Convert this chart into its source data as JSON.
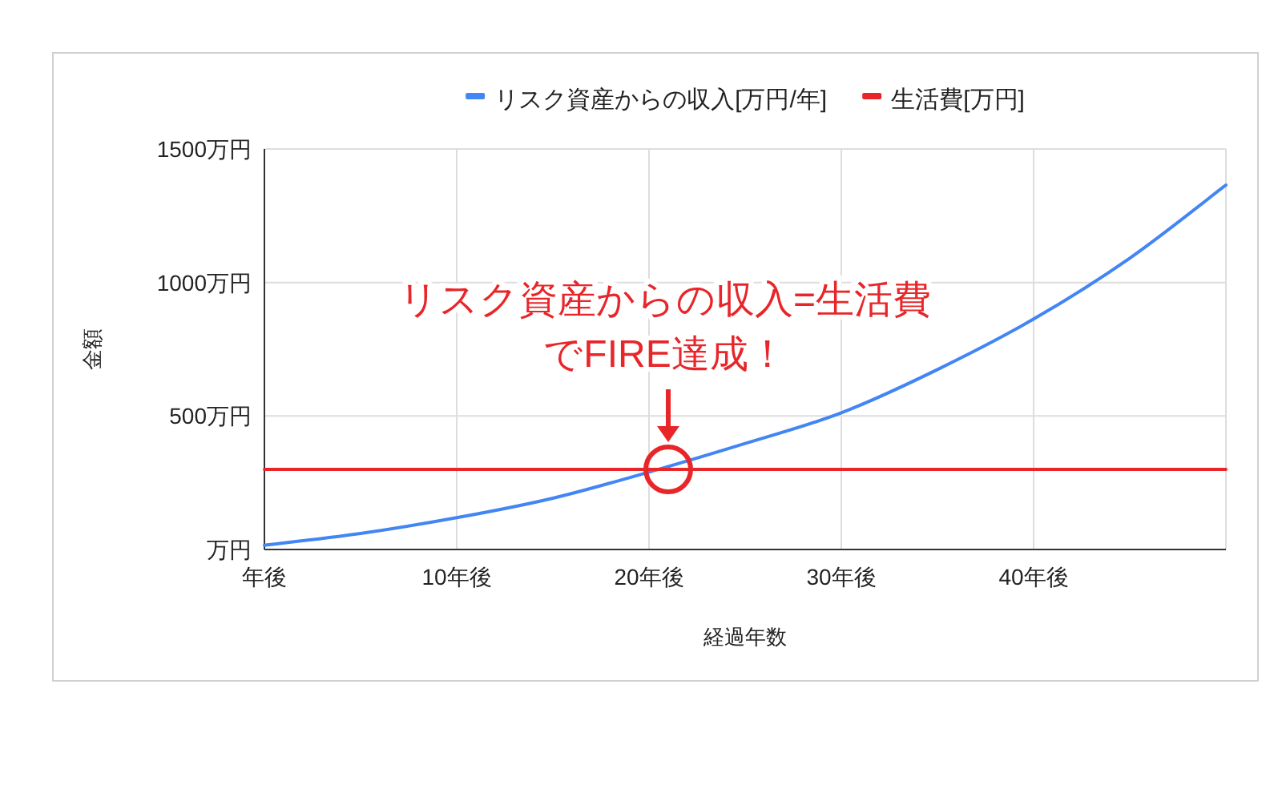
{
  "chart_data": {
    "type": "line",
    "xlabel": "経過年数",
    "ylabel": "金額",
    "series": [
      {
        "name": "リスク資産からの収入[万円/年]",
        "color": "#4285f4",
        "x": [
          0,
          5,
          10,
          15,
          20,
          25,
          30,
          35,
          40,
          45,
          50
        ],
        "values": [
          16,
          60,
          119,
          192,
          290,
          397,
          512,
          674,
          863,
          1091,
          1365
        ]
      },
      {
        "name": "生活費[万円]",
        "color": "#e8262a",
        "x": [
          0,
          50
        ],
        "values": [
          300,
          300
        ]
      }
    ],
    "xlim": [
      0,
      50
    ],
    "xticks": [
      {
        "value": 0,
        "label": "年後"
      },
      {
        "value": 10,
        "label": "10年後"
      },
      {
        "value": 20,
        "label": "20年後"
      },
      {
        "value": 30,
        "label": "30年後"
      },
      {
        "value": 40,
        "label": "40年後"
      }
    ],
    "ylim": [
      0,
      1500
    ],
    "yticks": [
      {
        "value": 0,
        "label": "万円"
      },
      {
        "value": 500,
        "label": "500万円"
      },
      {
        "value": 1000,
        "label": "1000万円"
      },
      {
        "value": 1500,
        "label": "1500万円"
      }
    ],
    "grid": true,
    "legend": "top",
    "marker": "none",
    "line_style": "solid",
    "annotations": [
      "リスク資産からの収入=生活費",
      {
        "text": "でFIRE達成！",
        "x": 21,
        "y": 300
      }
    ]
  }
}
